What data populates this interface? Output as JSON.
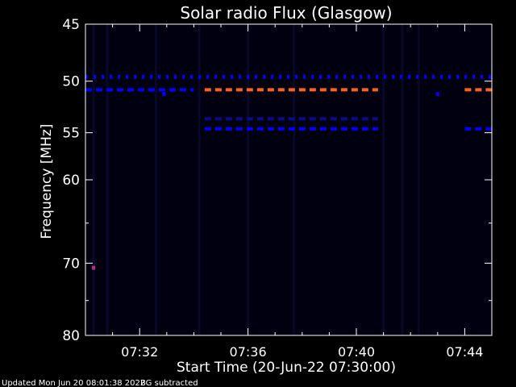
{
  "chart_data": {
    "type": "heatmap",
    "title": "Solar radio Flux (Glasgow)",
    "xlabel": "Start Time (20-Jun-22 07:30:00)",
    "ylabel": "Frequency [MHz]",
    "x_range_minutes": [
      "07:30:00",
      "07:45:00"
    ],
    "x_ticks": [
      "07:32",
      "07:36",
      "07:40",
      "07:44"
    ],
    "x_tick_minutes": [
      2,
      6,
      10,
      14
    ],
    "y_range_mhz": [
      45,
      80
    ],
    "y_scale": "log",
    "y_ticks": [
      45,
      50,
      55,
      60,
      70,
      80
    ],
    "background_color": "#000010",
    "emission_lines": [
      {
        "freq_mhz": 49.6,
        "start_min": 0.0,
        "end_min": 15.0,
        "color": "#0000ff",
        "style": "dotted"
      },
      {
        "freq_mhz": 50.8,
        "start_min": 0.0,
        "end_min": 4.0,
        "color": "#0000ff",
        "style": "dashed"
      },
      {
        "freq_mhz": 50.8,
        "start_min": 4.4,
        "end_min": 10.8,
        "color": "#ff6020",
        "style": "dashed"
      },
      {
        "freq_mhz": 50.8,
        "start_min": 14.0,
        "end_min": 15.0,
        "color": "#ff6020",
        "style": "dashed"
      },
      {
        "freq_mhz": 53.6,
        "start_min": 4.4,
        "end_min": 10.8,
        "color": "#0a0a90",
        "style": "dashed"
      },
      {
        "freq_mhz": 54.6,
        "start_min": 4.4,
        "end_min": 10.8,
        "color": "#0000ff",
        "style": "dashed"
      },
      {
        "freq_mhz": 54.6,
        "start_min": 14.0,
        "end_min": 15.0,
        "color": "#0000ff",
        "style": "dashed"
      }
    ],
    "isolated_points": [
      {
        "freq_mhz": 51.2,
        "minute": 2.9,
        "color": "#0000ff"
      },
      {
        "freq_mhz": 51.2,
        "minute": 13.0,
        "color": "#0000ff"
      },
      {
        "freq_mhz": 70.6,
        "minute": 0.3,
        "color": "#b03080"
      }
    ],
    "vertical_streaks_min": [
      0.3,
      0.8,
      2.6,
      4.2,
      6.0,
      7.7,
      11.0,
      11.7,
      12.3
    ]
  },
  "footer": {
    "updated": "Updated Mon Jun 20 08:01:38 2022",
    "note": "BG subtracted"
  }
}
